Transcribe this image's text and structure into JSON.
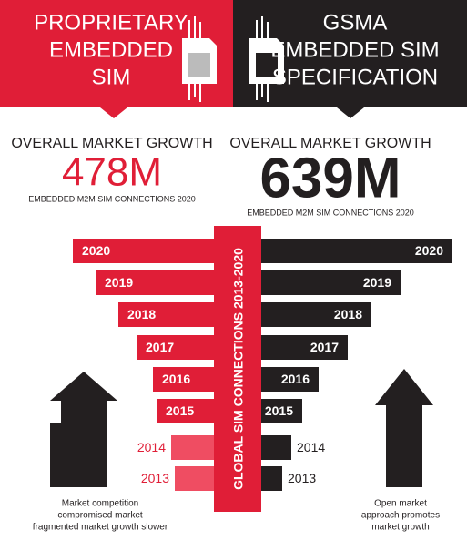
{
  "header": {
    "left": {
      "title": [
        "PROPRIETARY",
        "EMBEDDED",
        "SIM"
      ]
    },
    "right": {
      "title": [
        "GSMA",
        "EMBEDDED SIM",
        "SPECIFICATION"
      ]
    }
  },
  "growth": {
    "left": {
      "label": "OVERALL MARKET GROWTH",
      "figure": "478M",
      "caption": "EMBEDDED M2M SIM CONNECTIONS 2020"
    },
    "right": {
      "label": "OVERALL MARKET GROWTH",
      "figure": "639M",
      "caption": "EMBEDDED M2M SIM CONNECTIONS 2020"
    }
  },
  "center_label": "GLOBAL SIM CONNECTIONS 2013-2020",
  "years": {
    "left": [
      "2020",
      "2019",
      "2018",
      "2017",
      "2016",
      "2015",
      "2014",
      "2013"
    ],
    "right": [
      "2020",
      "2019",
      "2018",
      "2017",
      "2016",
      "2015",
      "2014",
      "2013"
    ]
  },
  "notes": {
    "left": [
      "Market competition",
      "compromised market",
      "fragmented market growth slower"
    ],
    "right": [
      "Open market",
      "approach promotes",
      "market growth"
    ]
  }
}
